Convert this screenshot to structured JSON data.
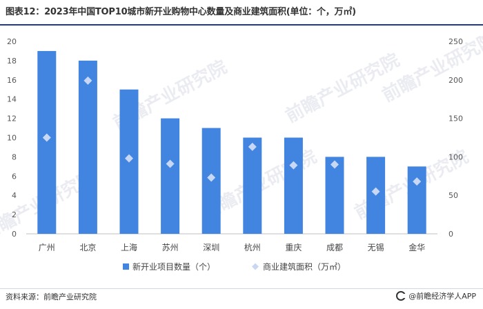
{
  "title": "图表12：2023年中国TOP10城市新开业购物中心数量及商业建筑面积(单位：个，万㎡)",
  "source_label": "资料来源：前瞻产业研究院",
  "brand_label": "@前瞻经济学人APP",
  "watermark_text": "前瞻产业研究院",
  "colors": {
    "bar": "#4285e0",
    "diamond": "#c8d8f4",
    "title_rule": "#1f3a8a"
  },
  "chart_data": {
    "type": "bar",
    "categories": [
      "广州",
      "北京",
      "上海",
      "苏州",
      "深圳",
      "杭州",
      "重庆",
      "成都",
      "无锡",
      "金华"
    ],
    "series": [
      {
        "name": "新开业项目数量（个）",
        "type": "bar",
        "axis": "left",
        "values": [
          19,
          18,
          15,
          12,
          11,
          10,
          10,
          8,
          8,
          7
        ]
      },
      {
        "name": "商业建筑面积（万㎡）",
        "type": "scatter",
        "axis": "right",
        "values": [
          125,
          199,
          98,
          91,
          73,
          113,
          89,
          90,
          55,
          68
        ]
      }
    ],
    "y_left": {
      "min": 0,
      "max": 20,
      "ticks": [
        0,
        2,
        4,
        6,
        8,
        10,
        12,
        14,
        16,
        18,
        20
      ]
    },
    "y_right": {
      "min": 0,
      "max": 250,
      "ticks": [
        0,
        50,
        100,
        150,
        200,
        250
      ]
    },
    "legend_position": "bottom-center",
    "grid": false
  }
}
